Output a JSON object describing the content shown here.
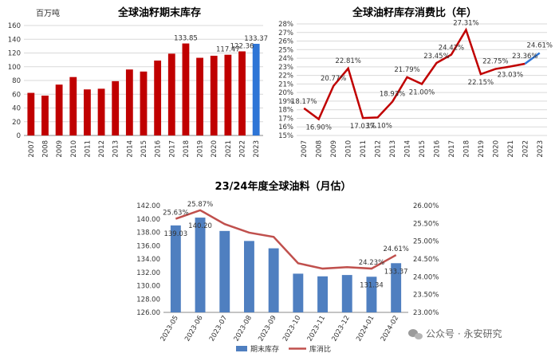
{
  "colors": {
    "red": "#c00000",
    "blue": "#2e75d6",
    "steel": "#4f7fc0",
    "line": "#c0504d",
    "grid": "#d9d9d9"
  },
  "watermark": {
    "icon": "wechat-icon",
    "text": "公众号 · 永安研究"
  },
  "chart_data": [
    {
      "type": "bar",
      "title": "全球油籽期末库存",
      "unit": "百万吨",
      "ylim": [
        0,
        160
      ],
      "yticks": [
        0,
        20,
        40,
        60,
        80,
        100,
        120,
        140,
        160
      ],
      "categories": [
        "2007",
        "2008",
        "2009",
        "2010",
        "2011",
        "2012",
        "2013",
        "2014",
        "2015",
        "2016",
        "2017",
        "2018",
        "2019",
        "2020",
        "2021",
        "2022",
        "2023"
      ],
      "values": [
        62,
        58,
        74,
        85,
        67,
        68,
        79,
        96,
        93,
        109,
        119,
        133.85,
        113,
        116,
        117.47,
        122.36,
        133.37
      ],
      "highlight_last": true,
      "labels": [
        {
          "index": 11,
          "text": "133.85"
        },
        {
          "index": 14,
          "text": "117.47"
        },
        {
          "index": 15,
          "text": "122.36"
        },
        {
          "index": 16,
          "text": "133.37"
        }
      ]
    },
    {
      "type": "line",
      "title": "全球油籽库存消费比（年）",
      "ylim": [
        0.15,
        0.28
      ],
      "yticks": [
        "15%",
        "16%",
        "17%",
        "18%",
        "19%",
        "20%",
        "21%",
        "22%",
        "23%",
        "24%",
        "25%",
        "26%",
        "27%",
        "28%"
      ],
      "categories": [
        "2007",
        "2008",
        "2009",
        "2010",
        "2011",
        "2012",
        "2013",
        "2014",
        "2015",
        "2016",
        "2017",
        "2018",
        "2019",
        "2020",
        "2021",
        "2022",
        "2023"
      ],
      "values": [
        0.1817,
        0.169,
        0.2077,
        0.2281,
        0.1703,
        0.171,
        0.1893,
        0.2179,
        0.21,
        0.2345,
        0.2442,
        0.2731,
        0.2215,
        0.2275,
        0.2303,
        0.2336,
        0.2461
      ],
      "highlight_last": true,
      "labels": [
        "18.17%",
        "16.90%",
        "20.77%",
        "22.81%",
        "17.03%",
        "17.10%",
        "18.93%",
        "21.79%",
        "21.00%",
        "23.45%",
        "24.42%",
        "27.31%",
        "22.15%",
        "22.75%",
        "23.03%",
        "23.36%",
        "24.61%"
      ]
    },
    {
      "type": "bar+line",
      "title": "23/24年度全球油料（月估）",
      "categories": [
        "2023-05",
        "2023-06",
        "2023-07",
        "2023-08",
        "2023-09",
        "2023-10",
        "2023-11",
        "2023-12",
        "2024-01",
        "2024-02"
      ],
      "series": [
        {
          "name": "期末库存",
          "type": "bar",
          "axis": "left",
          "values": [
            139.03,
            140.2,
            138.2,
            136.7,
            135.6,
            131.8,
            131.4,
            131.6,
            131.34,
            133.37
          ]
        },
        {
          "name": "库消比",
          "type": "line",
          "axis": "right",
          "values": [
            0.2563,
            0.2587,
            0.2548,
            0.2524,
            0.2512,
            0.2438,
            0.2423,
            0.2427,
            0.2423,
            0.2461
          ]
        }
      ],
      "ylim_left": [
        126,
        142
      ],
      "yticks_left": [
        "126.00",
        "128.00",
        "130.00",
        "132.00",
        "134.00",
        "136.00",
        "138.00",
        "140.00",
        "142.00"
      ],
      "ylim_right": [
        0.23,
        0.26
      ],
      "yticks_right": [
        "23.00%",
        "23.50%",
        "24.00%",
        "24.50%",
        "25.00%",
        "25.50%",
        "26.00%"
      ],
      "bar_labels": [
        {
          "index": 0,
          "text": "139.03"
        },
        {
          "index": 1,
          "text": "140.20"
        },
        {
          "index": 8,
          "text": "131.34"
        },
        {
          "index": 9,
          "text": "133.37"
        }
      ],
      "line_labels": [
        {
          "index": 0,
          "text": "25.63%"
        },
        {
          "index": 1,
          "text": "25.87%"
        },
        {
          "index": 8,
          "text": "24.23%"
        },
        {
          "index": 9,
          "text": "24.61%"
        }
      ],
      "legend_position": "bottom"
    }
  ]
}
